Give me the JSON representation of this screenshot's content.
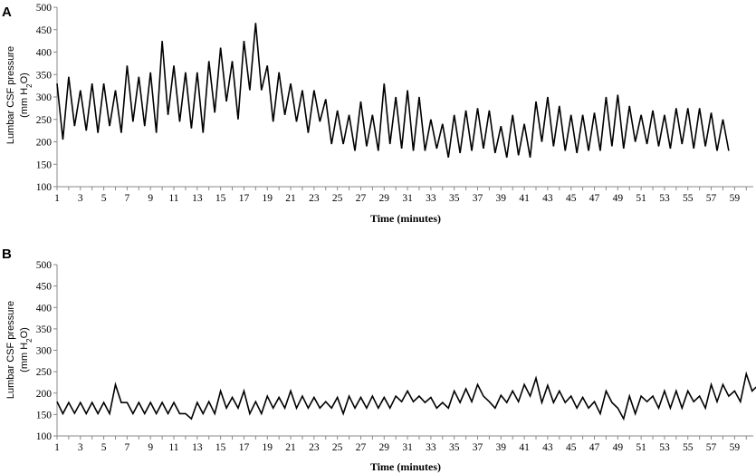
{
  "chart_data": [
    {
      "panel": "A",
      "type": "line",
      "xlabel": "Time (minutes)",
      "ylabel_line1": "Lumbar CSF pressure",
      "ylabel_line2": "(mm H",
      "ylabel_sub": "2",
      "ylabel_end": "O)",
      "ylim": [
        100,
        500
      ],
      "yticks": [
        100,
        150,
        200,
        250,
        300,
        350,
        400,
        450,
        500
      ],
      "xticks": [
        1,
        3,
        5,
        7,
        9,
        11,
        13,
        15,
        17,
        19,
        21,
        23,
        25,
        27,
        29,
        31,
        33,
        35,
        37,
        39,
        41,
        43,
        45,
        47,
        49,
        51,
        53,
        55,
        57,
        59
      ],
      "xlim": [
        1,
        60.6
      ],
      "grid": false,
      "x_step": 0.5,
      "values": [
        330,
        205,
        345,
        235,
        315,
        225,
        330,
        220,
        330,
        235,
        315,
        220,
        370,
        245,
        345,
        235,
        355,
        220,
        425,
        260,
        370,
        245,
        355,
        230,
        355,
        220,
        380,
        265,
        410,
        290,
        380,
        250,
        425,
        315,
        465,
        315,
        370,
        245,
        355,
        260,
        330,
        245,
        315,
        220,
        315,
        245,
        295,
        195,
        270,
        195,
        260,
        180,
        290,
        190,
        260,
        180,
        330,
        195,
        300,
        185,
        315,
        180,
        300,
        180,
        250,
        185,
        240,
        165,
        260,
        175,
        270,
        180,
        275,
        185,
        270,
        175,
        235,
        165,
        260,
        170,
        240,
        165,
        290,
        200,
        300,
        190,
        280,
        180,
        260,
        175,
        260,
        180,
        265,
        180,
        300,
        190,
        305,
        185,
        280,
        200,
        260,
        195,
        270,
        190,
        260,
        185,
        275,
        195,
        275,
        185,
        275,
        190,
        265,
        180,
        250,
        180
      ],
      "line_color": "#000000"
    },
    {
      "panel": "B",
      "type": "line",
      "xlabel": "Time (minutes)",
      "ylabel_line1": "Lumbar CSF pressure",
      "ylabel_line2": "(mm H",
      "ylabel_sub": "2",
      "ylabel_end": "O)",
      "ylim": [
        100,
        500
      ],
      "yticks": [
        100,
        150,
        200,
        250,
        300,
        350,
        400,
        450,
        500
      ],
      "xticks": [
        1,
        3,
        5,
        7,
        9,
        11,
        13,
        15,
        17,
        19,
        21,
        23,
        25,
        27,
        29,
        31,
        33,
        35,
        37,
        39,
        41,
        43,
        45,
        47,
        49,
        51,
        53,
        55,
        57,
        59
      ],
      "xlim": [
        1,
        60.6
      ],
      "grid": false,
      "x_step": 0.5,
      "values": [
        180,
        152,
        178,
        153,
        178,
        152,
        178,
        152,
        178,
        152,
        220,
        178,
        178,
        152,
        178,
        152,
        178,
        152,
        178,
        152,
        178,
        152,
        152,
        140,
        178,
        152,
        180,
        152,
        205,
        165,
        190,
        165,
        205,
        152,
        180,
        152,
        193,
        165,
        190,
        165,
        205,
        165,
        193,
        165,
        190,
        165,
        180,
        165,
        190,
        152,
        193,
        165,
        190,
        165,
        193,
        165,
        190,
        165,
        193,
        180,
        205,
        180,
        193,
        178,
        190,
        165,
        178,
        165,
        205,
        178,
        210,
        180,
        220,
        193,
        180,
        165,
        195,
        178,
        205,
        180,
        220,
        193,
        235,
        178,
        218,
        178,
        205,
        178,
        193,
        165,
        190,
        165,
        180,
        152,
        205,
        178,
        165,
        140,
        193,
        152,
        193,
        180,
        193,
        165,
        205,
        165,
        205,
        165,
        205,
        180,
        193,
        165,
        220,
        180,
        220,
        193,
        205,
        180,
        245,
        205,
        218,
        180,
        220,
        193
      ],
      "line_color": "#000000"
    }
  ]
}
